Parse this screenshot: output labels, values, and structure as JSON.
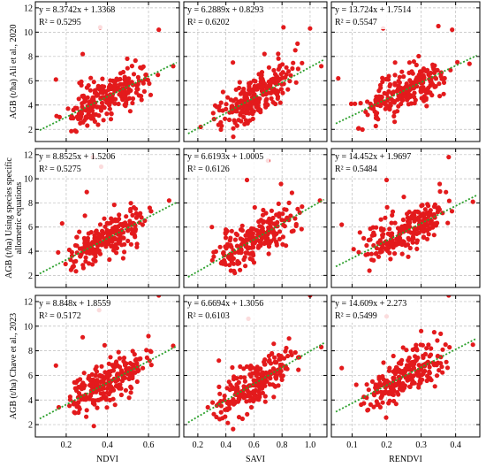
{
  "colors": {
    "point": "#e31a1c",
    "trend": "#2ca02c",
    "grid": "#bdbdbd",
    "frame": "#000000"
  },
  "chart_data": {
    "type": "scatter",
    "layout": "3x3 panel grid",
    "grid": true,
    "columns": [
      {
        "xlabel": "NDVI",
        "xlim": [
          0.05,
          0.75
        ],
        "xticks": [
          0.2,
          0.4,
          0.6
        ],
        "xtick_labels": [
          "0.2",
          "0.4",
          "0.6"
        ]
      },
      {
        "xlabel": "SAVI",
        "xlim": [
          0.1,
          1.12
        ],
        "xticks": [
          0.2,
          0.4,
          0.6,
          0.8,
          1.0
        ],
        "xtick_labels": [
          "0.2",
          "0.4",
          "0.6",
          "0.8",
          "1.0"
        ]
      },
      {
        "xlabel": "RENDVI",
        "xlim": [
          0.04,
          0.47
        ],
        "xticks": [
          0.1,
          0.2,
          0.3,
          0.4
        ],
        "xtick_labels": [
          "0.1",
          "0.2",
          "0.3",
          "0.4"
        ]
      }
    ],
    "rows": [
      {
        "ylabel_lines": [
          "AGB (t/ha) Ali et al., 2020"
        ],
        "ylim": [
          1.0,
          12.5
        ],
        "yticks": [
          2,
          4,
          6,
          8,
          10,
          12
        ],
        "ytick_labels": [
          "2",
          "4",
          "6",
          "8",
          "10",
          "12"
        ]
      },
      {
        "ylabel_lines": [
          "AGB (t/ha) Using species specific",
          "allometric equations"
        ],
        "ylim": [
          1.0,
          12.5
        ],
        "yticks": [
          2,
          4,
          6,
          8,
          10,
          12
        ],
        "ytick_labels": [
          "2",
          "4",
          "6",
          "8",
          "10",
          "12"
        ]
      },
      {
        "ylabel_lines": [
          "AGB (t/ha) Chave et al., 2023"
        ],
        "ylim": [
          1.0,
          12.5
        ],
        "yticks": [
          2,
          4,
          6,
          8,
          10,
          12
        ],
        "ytick_labels": [
          "2",
          "4",
          "6",
          "8",
          "10",
          "12"
        ]
      }
    ],
    "panels": [
      {
        "row": 0,
        "col": 0,
        "slope": 8.3742,
        "intercept": 1.3368,
        "equation": "y = 8.3742x + 1.3368",
        "r2": "R² = 0.5295",
        "outliers": [
          [
            0.365,
            10.4
          ],
          [
            0.65,
            10.2
          ],
          [
            0.72,
            7.2
          ],
          [
            0.15,
            6.1
          ],
          [
            0.28,
            8.2
          ]
        ]
      },
      {
        "row": 0,
        "col": 1,
        "slope": 6.2889,
        "intercept": 0.8293,
        "equation": "y = 6.2889x + 0.8293",
        "r2": "R² = 0.6202",
        "outliers": [
          [
            0.81,
            10.4
          ],
          [
            1.0,
            10.3
          ],
          [
            1.08,
            7.2
          ],
          [
            0.45,
            7.5
          ],
          [
            0.22,
            2.2
          ]
        ]
      },
      {
        "row": 0,
        "col": 2,
        "slope": 13.724,
        "intercept": 1.7514,
        "equation": "y = 13.724x + 1.7514",
        "r2": "R² = 0.5547",
        "outliers": [
          [
            0.19,
            10.3
          ],
          [
            0.35,
            10.5
          ],
          [
            0.39,
            10.2
          ],
          [
            0.44,
            7.4
          ],
          [
            0.06,
            6.2
          ]
        ]
      },
      {
        "row": 1,
        "col": 0,
        "slope": 8.8525,
        "intercept": 1.5206,
        "equation": "y = 8.8525x + 1.5206",
        "r2": "R² = 0.5275",
        "outliers": [
          [
            0.37,
            11.0
          ],
          [
            0.33,
            11.8
          ],
          [
            0.7,
            8.2
          ],
          [
            0.18,
            6.3
          ],
          [
            0.3,
            8.9
          ]
        ]
      },
      {
        "row": 1,
        "col": 1,
        "slope": 6.6193,
        "intercept": 1.0005,
        "equation": "y = 6.6193x + 1.0005",
        "r2": "R² = 0.6126",
        "outliers": [
          [
            0.55,
            9.9
          ],
          [
            0.7,
            11.5
          ],
          [
            1.07,
            8.2
          ],
          [
            0.3,
            6.0
          ],
          [
            0.85,
            8.0
          ]
        ]
      },
      {
        "row": 1,
        "col": 2,
        "slope": 14.452,
        "intercept": 1.9697,
        "equation": "y = 14.452x + 1.9697",
        "r2": "R² = 0.5484",
        "outliers": [
          [
            0.2,
            9.9
          ],
          [
            0.38,
            11.8
          ],
          [
            0.45,
            8.1
          ],
          [
            0.07,
            6.2
          ],
          [
            0.25,
            8.5
          ]
        ]
      },
      {
        "row": 2,
        "col": 0,
        "slope": 8.848,
        "intercept": 1.8559,
        "equation": "y = 8.848x + 1.8559",
        "r2": "R² = 0.5172",
        "outliers": [
          [
            0.36,
            11.3
          ],
          [
            0.65,
            12.5
          ],
          [
            0.72,
            8.4
          ],
          [
            0.15,
            6.8
          ],
          [
            0.28,
            9.1
          ]
        ]
      },
      {
        "row": 2,
        "col": 1,
        "slope": 6.6694,
        "intercept": 1.3056,
        "equation": "y = 6.6694x + 1.3056",
        "r2": "R² = 0.6103",
        "outliers": [
          [
            0.56,
            10.6
          ],
          [
            1.0,
            12.5
          ],
          [
            1.08,
            8.3
          ],
          [
            0.35,
            7.2
          ],
          [
            0.85,
            9.0
          ]
        ]
      },
      {
        "row": 2,
        "col": 2,
        "slope": 14.609,
        "intercept": 2.273,
        "equation": "y = 14.609x + 2.273",
        "r2": "R² = 0.5499",
        "outliers": [
          [
            0.2,
            10.8
          ],
          [
            0.38,
            12.5
          ],
          [
            0.45,
            8.5
          ],
          [
            0.07,
            6.6
          ],
          [
            0.3,
            9.6
          ]
        ]
      }
    ]
  }
}
